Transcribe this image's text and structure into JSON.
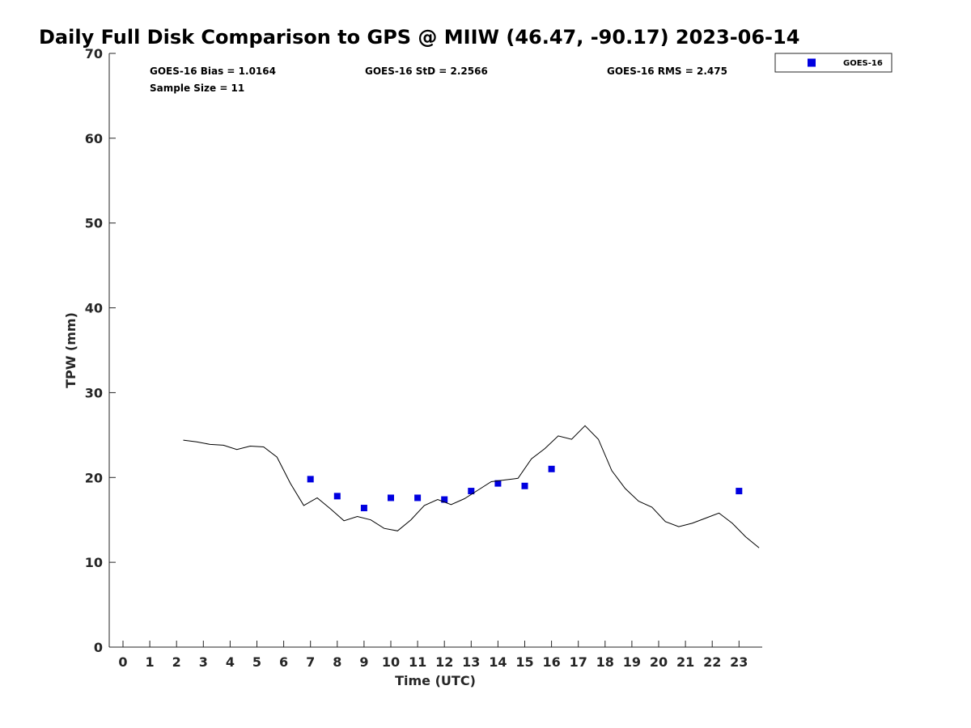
{
  "chart_data": {
    "type": "scatter",
    "title": "Daily Full Disk Comparison to GPS @ MIIW (46.47, -90.17) 2023-06-14",
    "xlabel": "Time (UTC)",
    "ylabel": "TPW (mm)",
    "xlim": [
      -0.5,
      23.75
    ],
    "ylim": [
      0,
      70
    ],
    "x_ticks": [
      "0",
      "1",
      "2",
      "3",
      "4",
      "5",
      "6",
      "7",
      "8",
      "9",
      "10",
      "11",
      "12",
      "13",
      "14",
      "15",
      "16",
      "17",
      "18",
      "19",
      "20",
      "21",
      "22",
      "23"
    ],
    "y_ticks": [
      "0",
      "10",
      "20",
      "30",
      "40",
      "50",
      "60",
      "70"
    ],
    "grid": false,
    "legend_position": "top-right",
    "stats": {
      "bias": "GOES-16 Bias = 1.0164",
      "std": "GOES-16 StD = 2.2566",
      "rms": "GOES-16 RMS = 2.475",
      "sample_size": "Sample Size = 11"
    },
    "series": [
      {
        "name": "GOES-16",
        "kind": "scatter",
        "marker": "square",
        "color": "#0000e0",
        "points": [
          {
            "x": 7.0,
            "y": 19.8
          },
          {
            "x": 8.0,
            "y": 17.8
          },
          {
            "x": 9.0,
            "y": 16.4
          },
          {
            "x": 10.0,
            "y": 17.6
          },
          {
            "x": 11.0,
            "y": 17.6
          },
          {
            "x": 12.0,
            "y": 17.4
          },
          {
            "x": 13.0,
            "y": 18.4
          },
          {
            "x": 14.0,
            "y": 19.3
          },
          {
            "x": 15.0,
            "y": 19.0
          },
          {
            "x": 16.0,
            "y": 21.0
          },
          {
            "x": 23.0,
            "y": 18.4
          }
        ]
      },
      {
        "kind": "line",
        "color": "#000000",
        "points": [
          {
            "x": 2.25,
            "y": 24.4
          },
          {
            "x": 2.75,
            "y": 24.2
          },
          {
            "x": 3.25,
            "y": 23.9
          },
          {
            "x": 3.75,
            "y": 23.8
          },
          {
            "x": 4.25,
            "y": 23.3
          },
          {
            "x": 4.75,
            "y": 23.7
          },
          {
            "x": 5.25,
            "y": 23.6
          },
          {
            "x": 5.75,
            "y": 22.4
          },
          {
            "x": 6.25,
            "y": 19.3
          },
          {
            "x": 6.75,
            "y": 16.7
          },
          {
            "x": 7.25,
            "y": 17.6
          },
          {
            "x": 7.75,
            "y": 16.3
          },
          {
            "x": 8.25,
            "y": 14.9
          },
          {
            "x": 8.75,
            "y": 15.4
          },
          {
            "x": 9.25,
            "y": 15.0
          },
          {
            "x": 9.75,
            "y": 14.0
          },
          {
            "x": 10.25,
            "y": 13.7
          },
          {
            "x": 10.75,
            "y": 15.0
          },
          {
            "x": 11.25,
            "y": 16.7
          },
          {
            "x": 11.75,
            "y": 17.4
          },
          {
            "x": 12.25,
            "y": 16.8
          },
          {
            "x": 12.75,
            "y": 17.5
          },
          {
            "x": 13.25,
            "y": 18.5
          },
          {
            "x": 13.75,
            "y": 19.5
          },
          {
            "x": 14.25,
            "y": 19.7
          },
          {
            "x": 14.75,
            "y": 19.9
          },
          {
            "x": 15.25,
            "y": 22.2
          },
          {
            "x": 15.75,
            "y": 23.4
          },
          {
            "x": 16.25,
            "y": 24.9
          },
          {
            "x": 16.75,
            "y": 24.5
          },
          {
            "x": 17.25,
            "y": 26.1
          },
          {
            "x": 17.75,
            "y": 24.5
          },
          {
            "x": 18.25,
            "y": 20.8
          },
          {
            "x": 18.75,
            "y": 18.7
          },
          {
            "x": 19.25,
            "y": 17.2
          },
          {
            "x": 19.75,
            "y": 16.5
          },
          {
            "x": 20.25,
            "y": 14.8
          },
          {
            "x": 20.75,
            "y": 14.2
          },
          {
            "x": 21.25,
            "y": 14.6
          },
          {
            "x": 21.75,
            "y": 15.2
          },
          {
            "x": 22.25,
            "y": 15.8
          },
          {
            "x": 22.75,
            "y": 14.6
          },
          {
            "x": 23.25,
            "y": 13.0
          },
          {
            "x": 23.75,
            "y": 11.7
          }
        ]
      }
    ]
  }
}
